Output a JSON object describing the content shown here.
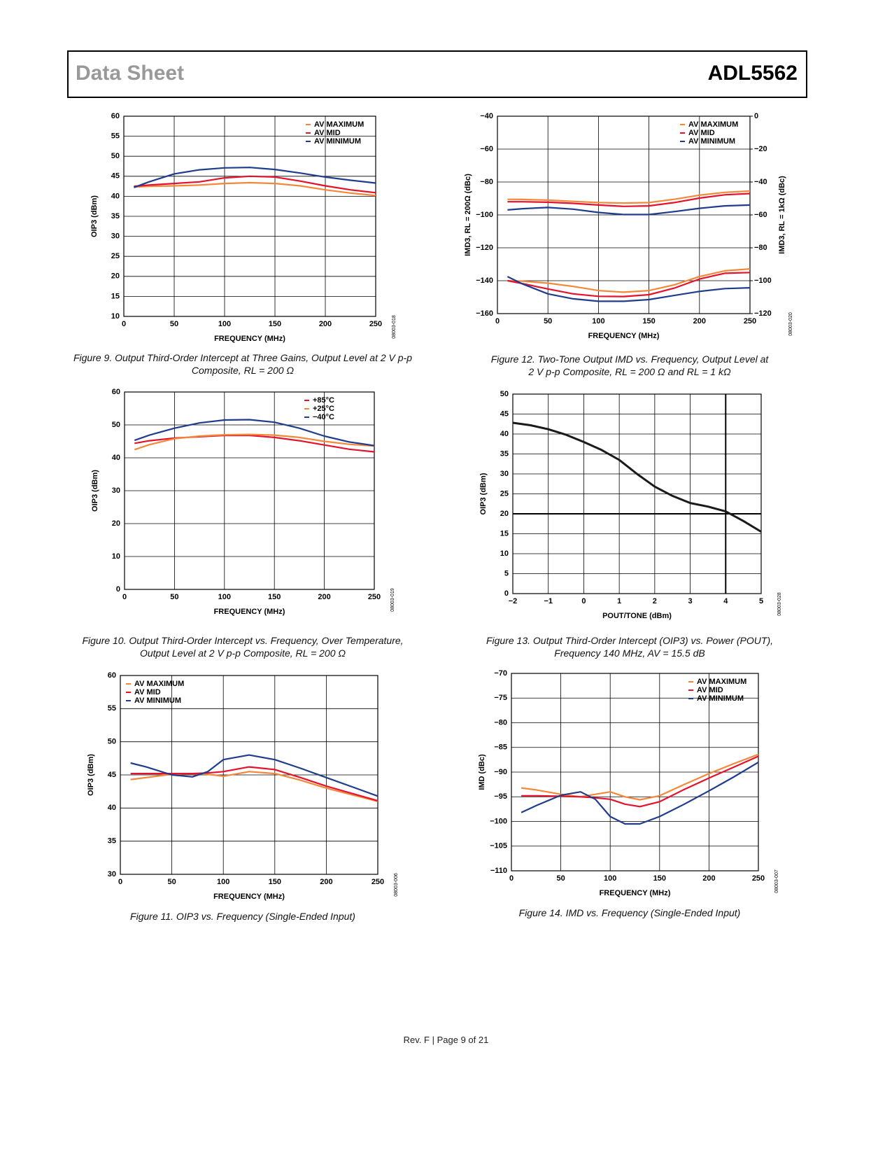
{
  "header": {
    "left": "Data Sheet",
    "right": "ADL5562"
  },
  "footer": "Rev. F | Page 9 of 21",
  "chart_data": [
    {
      "type": "line",
      "title": "Figure 9. Output Third-Order Intercept at Three Gains, Output Level at 2 V p-p Composite, RL = 200 Ω",
      "xlabel": "FREQUENCY (MHz)",
      "ylabel": "OIP3 (dBm)",
      "code": "08003-018",
      "grid": true,
      "legend": "upper right",
      "xlim": [
        0,
        250
      ],
      "xticks": [
        0,
        50,
        100,
        150,
        200,
        250
      ],
      "ylim": [
        10,
        60
      ],
      "yticks": [
        10,
        15,
        20,
        25,
        30,
        35,
        40,
        45,
        50,
        55,
        60
      ],
      "x": [
        10,
        25,
        50,
        75,
        100,
        125,
        150,
        175,
        200,
        225,
        250
      ],
      "series": [
        {
          "name": "AV MAXIMUM",
          "color": "#f4883a",
          "values": [
            42.3,
            42.5,
            42.6,
            42.8,
            43.2,
            43.4,
            43.2,
            42.6,
            41.6,
            40.8,
            40.2
          ]
        },
        {
          "name": "AV MID",
          "color": "#e4122c",
          "values": [
            42.5,
            42.8,
            43.2,
            43.6,
            44.6,
            45.0,
            44.8,
            43.8,
            42.6,
            41.6,
            40.9
          ]
        },
        {
          "name": "AV MINIMUM",
          "color": "#1f3d8c",
          "values": [
            42.2,
            43.6,
            45.6,
            46.6,
            47.1,
            47.2,
            46.7,
            45.8,
            44.8,
            44.0,
            43.3
          ]
        }
      ]
    },
    {
      "type": "line",
      "title": "Figure 12. Two-Tone Output IMD vs. Frequency, Output Level at 2 V p-p Composite, RL = 200 Ω and RL = 1 kΩ",
      "xlabel": "FREQUENCY (MHz)",
      "ylabel": "IMD3, RL = 200Ω (dBc)",
      "y2label": "IMD3, RL = 1kΩ (dBc)",
      "code": "08003-020",
      "grid": true,
      "legend": "upper right",
      "xlim": [
        0,
        250
      ],
      "xticks": [
        0,
        50,
        100,
        150,
        200,
        250
      ],
      "ylim": [
        -160,
        -40
      ],
      "yticks": [
        {
          "value": -160,
          "label": "−160"
        },
        {
          "value": -140,
          "label": "−140"
        },
        {
          "value": -120,
          "label": "−120"
        },
        {
          "value": -100,
          "label": "−100"
        },
        {
          "value": -80,
          "label": "−80"
        },
        {
          "value": -60,
          "label": "−60"
        },
        {
          "value": -40,
          "label": "−40"
        }
      ],
      "y2lim": [
        -120,
        0
      ],
      "y2ticks": [
        {
          "value": -120,
          "label": "−120"
        },
        {
          "value": -100,
          "label": "−100"
        },
        {
          "value": -80,
          "label": "−80"
        },
        {
          "value": -60,
          "label": "−60"
        },
        {
          "value": -40,
          "label": "−40"
        },
        {
          "value": -20,
          "label": "−20"
        },
        0
      ],
      "x": [
        10,
        25,
        50,
        75,
        100,
        125,
        150,
        175,
        200,
        225,
        250
      ],
      "series": [
        {
          "name": "AV MAXIMUM",
          "color": "#f4883a",
          "values": [
            -90.5,
            -90.6,
            -91,
            -91.8,
            -92.5,
            -92.8,
            -92.5,
            -90.5,
            -88,
            -86.3,
            -85.5
          ]
        },
        {
          "name": "AV MID",
          "color": "#e4122c",
          "values": [
            -92,
            -92,
            -92.3,
            -93,
            -94,
            -94.8,
            -94.5,
            -92.5,
            -89.8,
            -87.8,
            -87
          ]
        },
        {
          "name": "AV MINIMUM",
          "color": "#1f3d8c",
          "values": [
            -97,
            -96.2,
            -95.5,
            -96.5,
            -98.5,
            -99.8,
            -99.8,
            -98,
            -96,
            -94.5,
            -94
          ]
        },
        {
          "color": "#f4883a",
          "axis": "y2",
          "values": [
            -100,
            -100.3,
            -101.5,
            -103.5,
            -106,
            -107,
            -106,
            -102.5,
            -97.5,
            -94,
            -92.8
          ]
        },
        {
          "color": "#e4122c",
          "axis": "y2",
          "values": [
            -100,
            -101.8,
            -105,
            -108,
            -109.5,
            -109.6,
            -108.5,
            -104.5,
            -99,
            -95.5,
            -95
          ]
        },
        {
          "color": "#1f3d8c",
          "axis": "y2",
          "values": [
            -97.5,
            -102,
            -108,
            -111,
            -112.5,
            -112.5,
            -111.5,
            -109,
            -106.5,
            -104.8,
            -104.3
          ]
        }
      ]
    },
    {
      "type": "line",
      "title": "Figure 10. Output Third-Order Intercept vs. Frequency, Over Temperature, Output Level at 2 V p-p Composite, RL = 200 Ω",
      "xlabel": "FREQUENCY (MHz)",
      "ylabel": "OIP3 (dBm)",
      "code": "08003-019",
      "grid": true,
      "legend": "upper right",
      "xlim": [
        0,
        250
      ],
      "xticks": [
        0,
        50,
        100,
        150,
        200,
        250
      ],
      "ylim": [
        0,
        60
      ],
      "yticks": [
        0,
        10,
        20,
        30,
        40,
        50,
        60
      ],
      "x": [
        10,
        25,
        50,
        75,
        100,
        125,
        150,
        175,
        200,
        225,
        250
      ],
      "series": [
        {
          "name": "+85°C",
          "color": "#e4122c",
          "values": [
            44.4,
            45.2,
            46.0,
            46.4,
            46.8,
            46.8,
            46.2,
            45.2,
            43.9,
            42.6,
            41.8
          ]
        },
        {
          "name": "+25°C",
          "color": "#f4883a",
          "values": [
            42.5,
            44.0,
            45.8,
            46.6,
            47.0,
            47.1,
            46.9,
            46.2,
            45.0,
            44.1,
            43.6
          ]
        },
        {
          "name": "−40°C",
          "color": "#1f3d8c",
          "values": [
            45.3,
            46.9,
            49.0,
            50.6,
            51.5,
            51.6,
            50.8,
            49.0,
            46.6,
            44.8,
            43.7
          ]
        }
      ]
    },
    {
      "type": "line",
      "title": "Figure 13. Output Third-Order Intercept (OIP3) vs. Power (POUT), Frequency 140 MHz, AV = 15.5 dB",
      "xlabel": "POUT/TONE (dBm)",
      "ylabel": "OIP3 (dBm)",
      "code": "08003-028",
      "grid": true,
      "xlim": [
        -2,
        5
      ],
      "xticks": [
        {
          "value": -2,
          "label": "−2"
        },
        {
          "value": -1,
          "label": "−1"
        },
        0,
        1,
        2,
        3,
        4,
        5
      ],
      "ylim": [
        0,
        50
      ],
      "yticks": [
        0,
        5,
        10,
        15,
        20,
        25,
        30,
        35,
        40,
        45,
        50
      ],
      "hline": 20,
      "vline": 4,
      "x": [
        -2,
        -1.5,
        -1,
        -0.5,
        0,
        0.5,
        1,
        1.5,
        2,
        2.5,
        3,
        3.5,
        4,
        4.5,
        5
      ],
      "series": [
        {
          "color": "#1a1a1a",
          "values": [
            42.8,
            42.2,
            41.2,
            39.8,
            38,
            36,
            33.5,
            30,
            26.8,
            24.5,
            22.7,
            21.8,
            20.6,
            18.2,
            15.5
          ]
        }
      ]
    },
    {
      "type": "line",
      "title": "Figure 11. OIP3 vs. Frequency (Single-Ended Input)",
      "xlabel": "FREQUENCY (MHz)",
      "ylabel": "OIP3 (dBm)",
      "code": "08003-006",
      "grid": true,
      "legend": "upper left",
      "xlim": [
        0,
        250
      ],
      "xticks": [
        0,
        50,
        100,
        150,
        200,
        250
      ],
      "ylim": [
        30,
        60
      ],
      "yticks": [
        30,
        35,
        40,
        45,
        50,
        55,
        60
      ],
      "x": [
        10,
        25,
        50,
        70,
        85,
        100,
        125,
        150,
        175,
        200,
        225,
        250
      ],
      "series": [
        {
          "name": "AV MAXIMUM",
          "color": "#f4883a",
          "values": [
            44.3,
            44.6,
            45.1,
            45.2,
            45.1,
            44.8,
            45.5,
            45.2,
            44.2,
            43.0,
            42.0,
            41.0
          ]
        },
        {
          "name": "AV MID",
          "color": "#e4122c",
          "values": [
            45.2,
            45.2,
            45.2,
            45.2,
            45.3,
            45.5,
            46.2,
            45.8,
            44.6,
            43.3,
            42.2,
            41.1
          ]
        },
        {
          "name": "AV MINIMUM",
          "color": "#1f3d8c",
          "values": [
            46.8,
            46.2,
            45.0,
            44.7,
            45.5,
            47.3,
            48.0,
            47.3,
            46.0,
            44.6,
            43.2,
            41.8
          ]
        }
      ]
    },
    {
      "type": "line",
      "title": "Figure 14. IMD vs. Frequency (Single-Ended Input)",
      "xlabel": "FREQUENCY (MHz)",
      "ylabel": "IMD (dBc)",
      "code": "08003-007",
      "grid": true,
      "legend": "upper right",
      "xlim": [
        0,
        250
      ],
      "xticks": [
        0,
        50,
        100,
        150,
        200,
        250
      ],
      "ylim": [
        -110,
        -70
      ],
      "yticks": [
        {
          "value": -110,
          "label": "−110"
        },
        {
          "value": -105,
          "label": "−105"
        },
        {
          "value": -100,
          "label": "−100"
        },
        {
          "value": -95,
          "label": "−95"
        },
        {
          "value": -90,
          "label": "−90"
        },
        {
          "value": -85,
          "label": "−85"
        },
        {
          "value": -80,
          "label": "−80"
        },
        {
          "value": -75,
          "label": "−75"
        },
        {
          "value": -70,
          "label": "−70"
        }
      ],
      "x": [
        10,
        25,
        50,
        70,
        85,
        100,
        115,
        130,
        150,
        175,
        200,
        225,
        250
      ],
      "series": [
        {
          "name": "AV MAXIMUM",
          "color": "#f4883a",
          "values": [
            -93.2,
            -93.6,
            -94.5,
            -95,
            -94.5,
            -94,
            -95,
            -95.6,
            -94.8,
            -92.5,
            -90.3,
            -88.3,
            -86.4
          ]
        },
        {
          "name": "AV MID",
          "color": "#e4122c",
          "values": [
            -94.8,
            -94.8,
            -94.9,
            -95,
            -95.2,
            -95.5,
            -96.5,
            -97,
            -96,
            -93.5,
            -91.2,
            -89,
            -86.8
          ]
        },
        {
          "name": "AV MINIMUM",
          "color": "#1f3d8c",
          "values": [
            -98.2,
            -96.8,
            -94.7,
            -94,
            -95.5,
            -99,
            -100.5,
            -100.5,
            -99,
            -96.5,
            -93.8,
            -91,
            -88
          ]
        }
      ]
    }
  ]
}
